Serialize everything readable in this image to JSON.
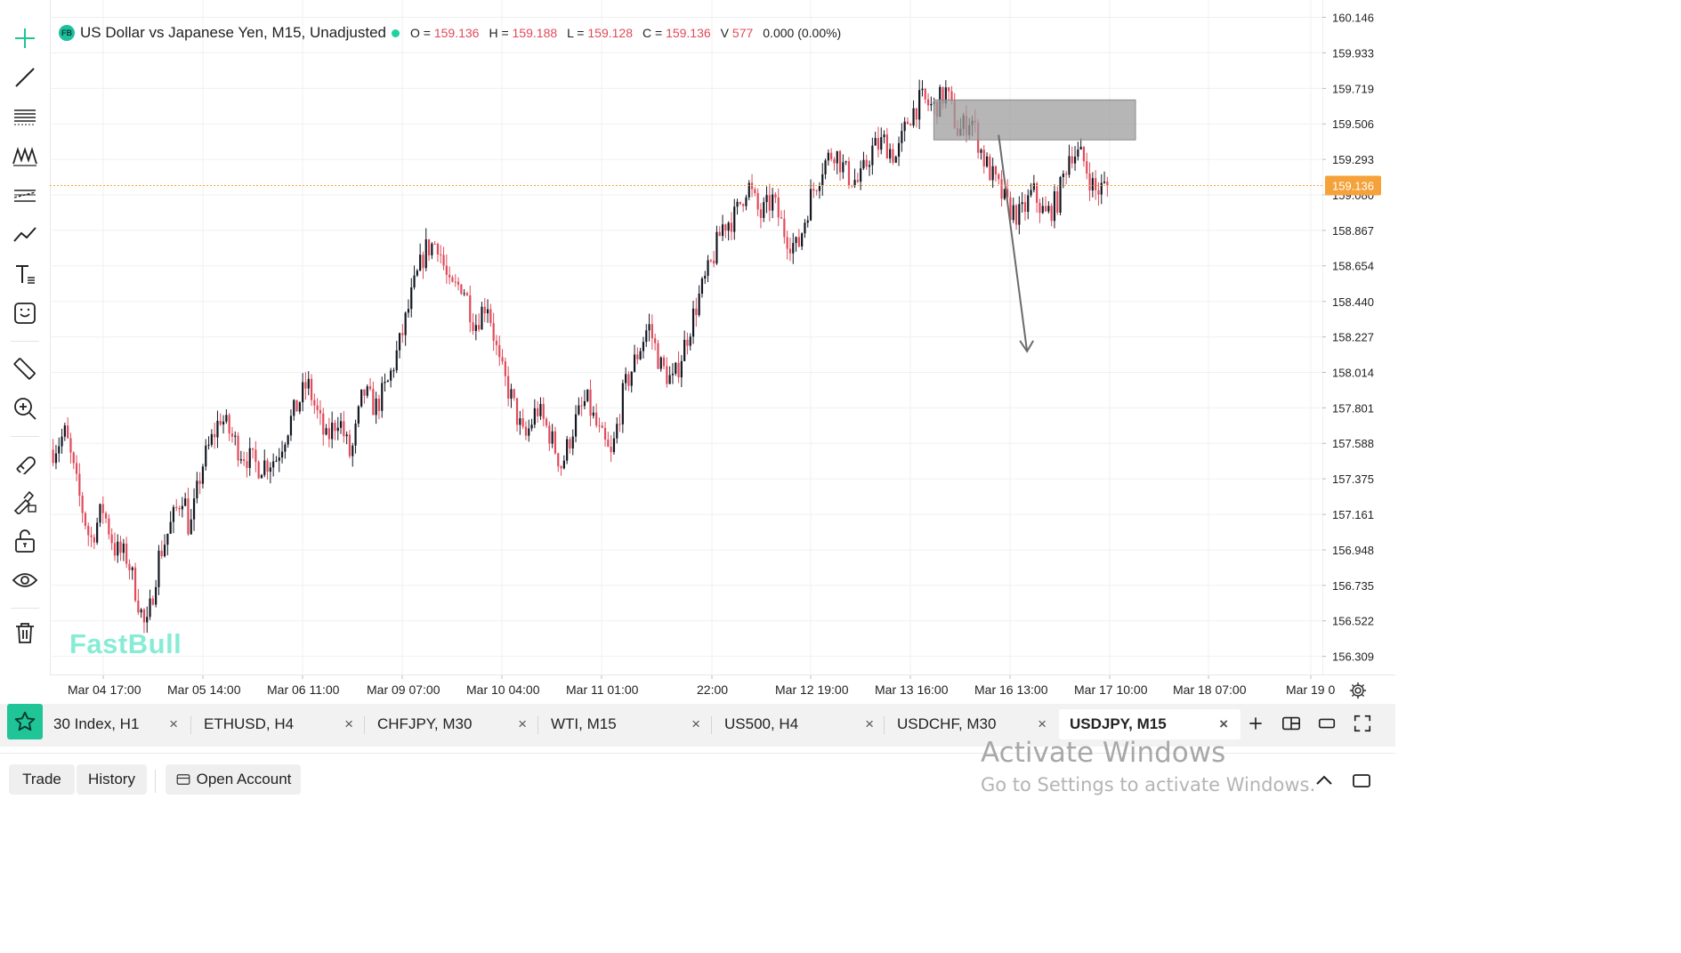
{
  "legend": {
    "logo_text": "FB",
    "title": "US Dollar vs Japanese Yen, M15, Unadjusted",
    "open_label": "O =",
    "open": "159.136",
    "high_label": "H =",
    "high": "159.188",
    "low_label": "L =",
    "low": "159.128",
    "close_label": "C =",
    "close": "159.136",
    "volume_label": "V",
    "volume": "577",
    "change": "0.000 (0.00%)"
  },
  "watermark": "FastBull",
  "price_axis": {
    "labels": [
      "160.146",
      "159.933",
      "159.719",
      "159.506",
      "159.293",
      "159.080",
      "158.867",
      "158.654",
      "158.440",
      "158.227",
      "158.014",
      "157.801",
      "157.588",
      "157.375",
      "157.161",
      "156.948",
      "156.735",
      "156.522",
      "156.309"
    ],
    "current_price": "159.136"
  },
  "time_axis": {
    "labels": [
      "Mar 04 17:00",
      "Mar 05 14:00",
      "Mar 06 11:00",
      "Mar 09 07:00",
      "Mar 10 04:00",
      "Mar 11 01:00",
      "22:00",
      "Mar 12 19:00",
      "Mar 13 16:00",
      "Mar 16 13:00",
      "Mar 17 10:00",
      "Mar 18 07:00",
      "Mar 19 0"
    ]
  },
  "tabs": [
    {
      "label": "30 Index, H1",
      "active": false
    },
    {
      "label": "ETHUSD, H4",
      "active": false
    },
    {
      "label": "CHFJPY, M30",
      "active": false
    },
    {
      "label": "WTI, M15",
      "active": false
    },
    {
      "label": "US500, H4",
      "active": false
    },
    {
      "label": "USDCHF, M30",
      "active": false
    },
    {
      "label": "USDJPY, M15",
      "active": true
    }
  ],
  "tab_close_glyph": "×",
  "bottom": {
    "trade": "Trade",
    "history": "History",
    "open_account": "Open Account"
  },
  "activate": {
    "line1": "Activate Windows",
    "line2": "Go to Settings to activate Windows."
  },
  "colors": {
    "up": "#131722",
    "down": "#e04a5a",
    "accent": "#1fc497",
    "price_tag": "#f5a23a",
    "zone": "#9e9e9e"
  },
  "chart_data": {
    "type": "candlestick",
    "symbol": "USDJPY",
    "timeframe": "M15",
    "ylim": [
      156.2,
      160.25
    ],
    "current_price": 159.136,
    "trend_path": [
      [
        0,
        157.55
      ],
      [
        2,
        157.65
      ],
      [
        4,
        157.3
      ],
      [
        6,
        157.0
      ],
      [
        8,
        157.2
      ],
      [
        10,
        156.95
      ],
      [
        12,
        156.9
      ],
      [
        14,
        156.6
      ],
      [
        15,
        156.45
      ],
      [
        17,
        156.9
      ],
      [
        19,
        157.1
      ],
      [
        21,
        157.3
      ],
      [
        22,
        157.05
      ],
      [
        24,
        157.45
      ],
      [
        27,
        157.75
      ],
      [
        30,
        157.55
      ],
      [
        33,
        157.45
      ],
      [
        36,
        157.5
      ],
      [
        38,
        157.7
      ],
      [
        41,
        157.95
      ],
      [
        44,
        157.6
      ],
      [
        46,
        157.75
      ],
      [
        48,
        157.5
      ],
      [
        50,
        157.9
      ],
      [
        52,
        157.8
      ],
      [
        54,
        157.95
      ],
      [
        56,
        158.2
      ],
      [
        58,
        158.5
      ],
      [
        60,
        158.75
      ],
      [
        62,
        158.8
      ],
      [
        64,
        158.5
      ],
      [
        66,
        158.55
      ],
      [
        68,
        158.3
      ],
      [
        70,
        158.45
      ],
      [
        72,
        158.05
      ],
      [
        74,
        157.85
      ],
      [
        76,
        157.6
      ],
      [
        78,
        157.8
      ],
      [
        80,
        157.65
      ],
      [
        82,
        157.45
      ],
      [
        84,
        157.7
      ],
      [
        86,
        157.85
      ],
      [
        88,
        157.65
      ],
      [
        90,
        157.5
      ],
      [
        92,
        157.9
      ],
      [
        94,
        158.1
      ],
      [
        96,
        158.3
      ],
      [
        98,
        158.05
      ],
      [
        100,
        157.95
      ],
      [
        102,
        158.2
      ],
      [
        104,
        158.45
      ],
      [
        106,
        158.65
      ],
      [
        108,
        158.9
      ],
      [
        110,
        158.95
      ],
      [
        112,
        159.15
      ],
      [
        114,
        158.95
      ],
      [
        116,
        159.05
      ],
      [
        118,
        158.85
      ],
      [
        120,
        158.75
      ],
      [
        122,
        159.05
      ],
      [
        124,
        159.25
      ],
      [
        126,
        159.35
      ],
      [
        128,
        159.2
      ],
      [
        130,
        159.15
      ],
      [
        132,
        159.35
      ],
      [
        134,
        159.4
      ],
      [
        136,
        159.3
      ],
      [
        138,
        159.55
      ],
      [
        140,
        159.65
      ],
      [
        142,
        159.6
      ],
      [
        144,
        159.7
      ],
      [
        146,
        159.45
      ],
      [
        148,
        159.55
      ],
      [
        150,
        159.3
      ],
      [
        152,
        159.15
      ],
      [
        154,
        159.0
      ],
      [
        156,
        158.95
      ],
      [
        158,
        159.1
      ],
      [
        160,
        158.95
      ],
      [
        162,
        159.05
      ],
      [
        164,
        159.35
      ],
      [
        166,
        159.3
      ],
      [
        168,
        159.1
      ],
      [
        170,
        159.136
      ]
    ],
    "price_zone": {
      "x_from": 139,
      "x_to": 168,
      "y_from": 159.41,
      "y_to": 159.65
    },
    "arrow": {
      "from": [
        154,
        159.44
      ],
      "to": [
        158,
        158.14
      ]
    }
  }
}
